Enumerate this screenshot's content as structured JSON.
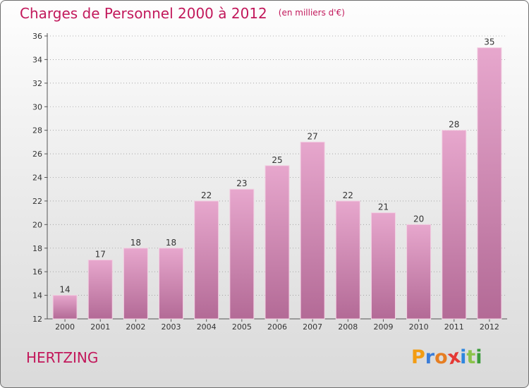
{
  "title": "Charges de Personnel 2000 à 2012",
  "subtitle": "(en milliers d'€)",
  "place": "HERTZING",
  "logo": {
    "letters": [
      "P",
      "r",
      "o",
      "x",
      "i",
      "t",
      "i"
    ],
    "colors": [
      "#f39c12",
      "#3b7dd8",
      "#e67e22",
      "#e53935",
      "#2e86de",
      "#8bc34a",
      "#3b9c3b"
    ]
  },
  "colors": {
    "bar_top": "#e7a7cd",
    "bar_bottom": "#b36a96",
    "title": "#c2185b",
    "grid": "#9a9a9a"
  },
  "chart_data": {
    "type": "bar",
    "title": "Charges de Personnel 2000 à 2012",
    "subtitle": "(en milliers d'€)",
    "categories": [
      "2000",
      "2001",
      "2002",
      "2003",
      "2004",
      "2005",
      "2006",
      "2007",
      "2008",
      "2009",
      "2010",
      "2011",
      "2012"
    ],
    "values": [
      14,
      17,
      18,
      18,
      22,
      23,
      25,
      27,
      22,
      21,
      20,
      28,
      35
    ],
    "ylim": [
      12,
      36
    ],
    "yticks": [
      12,
      14,
      16,
      18,
      20,
      22,
      24,
      26,
      28,
      30,
      32,
      34,
      36
    ],
    "grid": true,
    "xlabel": "",
    "ylabel": ""
  }
}
